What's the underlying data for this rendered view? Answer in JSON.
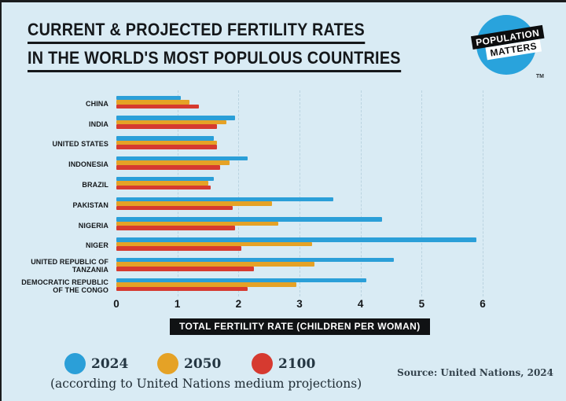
{
  "header": {
    "title_line1": "CURRENT & PROJECTED FERTILITY RATES",
    "title_line2": "IN THE WORLD'S MOST POPULOUS COUNTRIES",
    "logo": {
      "line1": "POPULATION",
      "line2": "MATTERS",
      "tm": "TM"
    }
  },
  "chart_data": {
    "type": "bar",
    "orientation": "horizontal",
    "title": "Current & projected fertility rates in the world's most populous countries",
    "categories": [
      "CHINA",
      "INDIA",
      "UNITED STATES",
      "INDONESIA",
      "BRAZIL",
      "PAKISTAN",
      "NIGERIA",
      "NIGER",
      "UNITED REPUBLIC OF TANZANIA",
      "DEMOCRATIC REPUBLIC OF THE CONGO"
    ],
    "series": [
      {
        "name": "2024",
        "color": "#2B9FD8",
        "values": [
          1.05,
          1.95,
          1.6,
          2.15,
          1.6,
          3.55,
          4.35,
          5.9,
          4.55,
          4.1
        ]
      },
      {
        "name": "2050",
        "color": "#E5A226",
        "values": [
          1.2,
          1.8,
          1.65,
          1.85,
          1.5,
          2.55,
          2.65,
          3.2,
          3.25,
          2.95
        ]
      },
      {
        "name": "2100",
        "color": "#D63A30",
        "values": [
          1.35,
          1.65,
          1.65,
          1.7,
          1.55,
          1.9,
          1.95,
          2.05,
          2.25,
          2.15
        ]
      }
    ],
    "xlabel": "TOTAL FERTILITY RATE (CHILDREN PER WOMAN)",
    "xlim": [
      0,
      6
    ],
    "xticks": [
      0,
      1,
      2,
      3,
      4,
      5,
      6
    ],
    "grid": true,
    "legend_position": "bottom"
  },
  "legend": {
    "note": "(according to United Nations medium projections)"
  },
  "footer": {
    "source": "Source: United Nations, 2024"
  },
  "colors": {
    "background": "#D9EBF4",
    "text_dark": "#15181B",
    "axis_pill_bg": "#101214",
    "logo_circle": "#29A3DC",
    "gridline": "#BAD3E0"
  }
}
